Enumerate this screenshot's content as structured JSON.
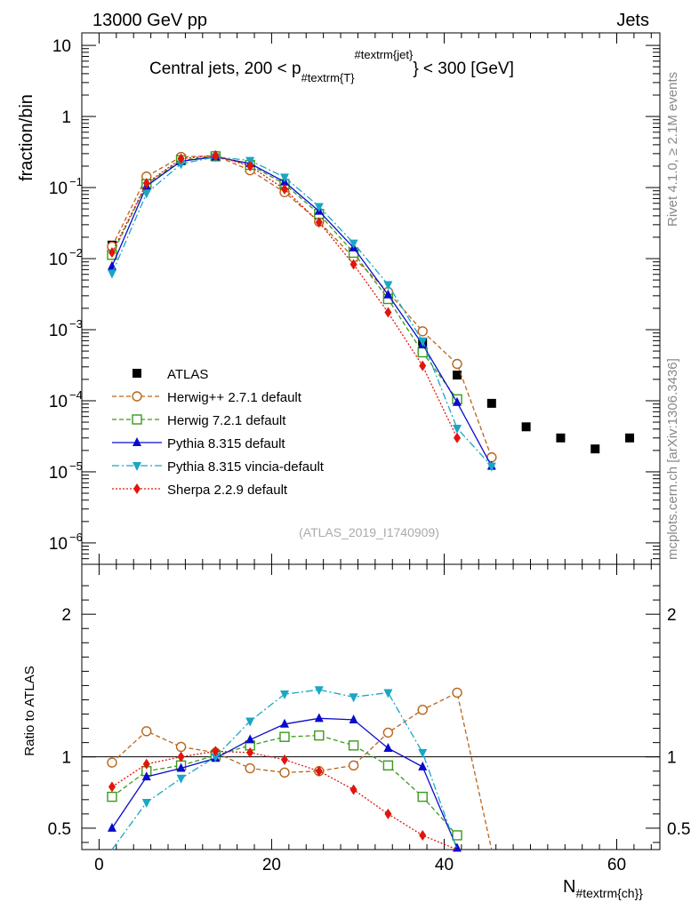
{
  "header": {
    "left": "13000 GeV pp",
    "right": "Jets",
    "side_top": "Rivet 4.1.0, ≥ 2.1M events",
    "side_bottom": "mcplots.cern.ch [arXiv:1306.3436]",
    "watermark": "(ATLAS_2019_I1740909)"
  },
  "chart_data": [
    {
      "type": "line",
      "panel": "main",
      "title": "Central jets, 200 < p_{#textrm{T}}^{#textrm{jet}} < 300 [GeV]",
      "title_parts": {
        "pre": "Central jets, 200 < p",
        "sub": "#textrm{T}",
        "sup": "#textrm{jet}",
        "post": "} < 300 [GeV]"
      },
      "ylabel": "fraction/bin",
      "yscale": "log",
      "ylim": [
        5e-07,
        15
      ],
      "xlim": [
        -2,
        65
      ],
      "ytick_labels": [
        {
          "v": 10,
          "label": "10"
        },
        {
          "v": 1,
          "label": "1"
        },
        {
          "v": 0.1,
          "label": "10",
          "exp": "−1"
        },
        {
          "v": 0.01,
          "label": "10",
          "exp": "−2"
        },
        {
          "v": 0.001,
          "label": "10",
          "exp": "−3"
        },
        {
          "v": 0.0001,
          "label": "10",
          "exp": "−4"
        },
        {
          "v": 1e-05,
          "label": "10",
          "exp": "−5"
        },
        {
          "v": 1e-06,
          "label": "10",
          "exp": "−6"
        }
      ],
      "legend_position": "middle-left",
      "series": [
        {
          "name": "ATLAS",
          "color": "#000000",
          "marker": "square-filled",
          "dash": "",
          "x": [
            1.5,
            5.5,
            9.5,
            13.5,
            17.5,
            21.5,
            25.5,
            29.5,
            33.5,
            37.5,
            41.5,
            45.5,
            49.5,
            53.5,
            57.5,
            61.5
          ],
          "y": [
            0.0155,
            0.122,
            0.258,
            0.272,
            0.193,
            0.0975,
            0.0365,
            0.0112,
            0.0029,
            0.00067,
            0.00023,
            9.2e-05,
            4.3e-05,
            3e-05,
            2.1e-05,
            3e-05
          ]
        },
        {
          "name": "Herwig++ 2.7.1 default",
          "color": "#b8651a",
          "marker": "circle-open",
          "dash": "5,3",
          "x": [
            1.5,
            5.5,
            9.5,
            13.5,
            17.5,
            21.5,
            25.5,
            29.5,
            33.5,
            37.5,
            41.5,
            45.5
          ],
          "y": [
            0.0148,
            0.143,
            0.27,
            0.28,
            0.175,
            0.086,
            0.033,
            0.0104,
            0.0034,
            0.00095,
            0.00033,
            1.6e-05
          ]
        },
        {
          "name": "Herwig 7.2.1 default",
          "color": "#3a9a1a",
          "marker": "square-open",
          "dash": "5,3",
          "x": [
            1.5,
            5.5,
            9.5,
            13.5,
            17.5,
            21.5,
            25.5,
            29.5,
            33.5,
            37.5,
            41.5
          ],
          "y": [
            0.0113,
            0.112,
            0.242,
            0.275,
            0.208,
            0.112,
            0.0425,
            0.0121,
            0.0027,
            0.00048,
            0.000105
          ]
        },
        {
          "name": "Pythia 8.315 default",
          "color": "#0a0acc",
          "marker": "triangle-up",
          "dash": "",
          "x": [
            1.5,
            5.5,
            9.5,
            13.5,
            17.5,
            21.5,
            25.5,
            29.5,
            33.5,
            37.5,
            41.5,
            45.5
          ],
          "y": [
            0.0078,
            0.105,
            0.235,
            0.27,
            0.218,
            0.12,
            0.0465,
            0.0142,
            0.0031,
            0.00062,
            9.5e-05,
            1.2e-05
          ]
        },
        {
          "name": "Pythia 8.315 vincia-default",
          "color": "#1aa6c4",
          "marker": "triangle-down",
          "dash": "8,3,2,3",
          "x": [
            1.5,
            5.5,
            9.5,
            13.5,
            17.5,
            21.5,
            25.5,
            29.5,
            33.5,
            37.5,
            41.5,
            45.5
          ],
          "y": [
            0.0062,
            0.083,
            0.215,
            0.27,
            0.24,
            0.14,
            0.054,
            0.0165,
            0.0043,
            0.00069,
            4.1e-05,
            1.2e-05
          ]
        },
        {
          "name": "Sherpa 2.2.9 default",
          "color": "#e0160d",
          "marker": "diamond",
          "dash": "2,2",
          "x": [
            1.5,
            5.5,
            9.5,
            13.5,
            17.5,
            21.5,
            25.5,
            29.5,
            33.5,
            37.5,
            41.5
          ],
          "y": [
            0.0122,
            0.115,
            0.255,
            0.282,
            0.2,
            0.095,
            0.0325,
            0.0083,
            0.00175,
            0.00031,
            3e-05
          ]
        }
      ]
    },
    {
      "type": "line",
      "panel": "ratio",
      "ylabel": "Ratio to ATLAS",
      "xlabel": "N_{#textrm{ch}}",
      "xlabel_parts": {
        "main": "N",
        "sub": "#textrm{ch}}"
      },
      "ylim": [
        0.35,
        2.35
      ],
      "xlim": [
        -2,
        65
      ],
      "xticks": [
        0,
        20,
        40,
        60
      ],
      "yticks": [
        0.5,
        1,
        2
      ],
      "reference_line": 1,
      "series": [
        {
          "name": "Herwig++ 2.7.1 default",
          "x": [
            1.5,
            5.5,
            9.5,
            13.5,
            17.5,
            21.5,
            25.5,
            29.5,
            33.5,
            37.5,
            41.5,
            45.5
          ],
          "y": [
            0.96,
            1.18,
            1.07,
            1.03,
            0.92,
            0.89,
            0.9,
            0.94,
            1.17,
            1.33,
            1.45,
            0.0
          ]
        },
        {
          "name": "Herwig 7.2.1 default",
          "x": [
            1.5,
            5.5,
            9.5,
            13.5,
            17.5,
            21.5,
            25.5,
            29.5,
            33.5,
            37.5,
            41.5
          ],
          "y": [
            0.72,
            0.9,
            0.94,
            1.01,
            1.08,
            1.14,
            1.15,
            1.08,
            0.94,
            0.72,
            0.45
          ]
        },
        {
          "name": "Pythia 8.315 default",
          "x": [
            1.5,
            5.5,
            9.5,
            13.5,
            17.5,
            21.5,
            25.5,
            29.5,
            33.5,
            37.5,
            41.5
          ],
          "y": [
            0.5,
            0.86,
            0.92,
            0.99,
            1.12,
            1.23,
            1.27,
            1.26,
            1.06,
            0.93,
            0.36
          ]
        },
        {
          "name": "Pythia 8.315 vincia-default",
          "x": [
            1.5,
            5.5,
            9.5,
            13.5,
            17.5,
            21.5,
            25.5,
            29.5,
            33.5,
            37.5,
            41.5
          ],
          "y": [
            0.3,
            0.68,
            0.85,
            1.0,
            1.25,
            1.44,
            1.47,
            1.42,
            1.45,
            1.03,
            0.2
          ]
        },
        {
          "name": "Sherpa 2.2.9 default",
          "x": [
            1.5,
            5.5,
            9.5,
            13.5,
            17.5,
            21.5,
            25.5,
            29.5,
            33.5,
            37.5,
            41.5
          ],
          "y": [
            0.79,
            0.95,
            1.0,
            1.04,
            1.03,
            0.98,
            0.9,
            0.77,
            0.6,
            0.45,
            0.13
          ]
        }
      ]
    }
  ]
}
